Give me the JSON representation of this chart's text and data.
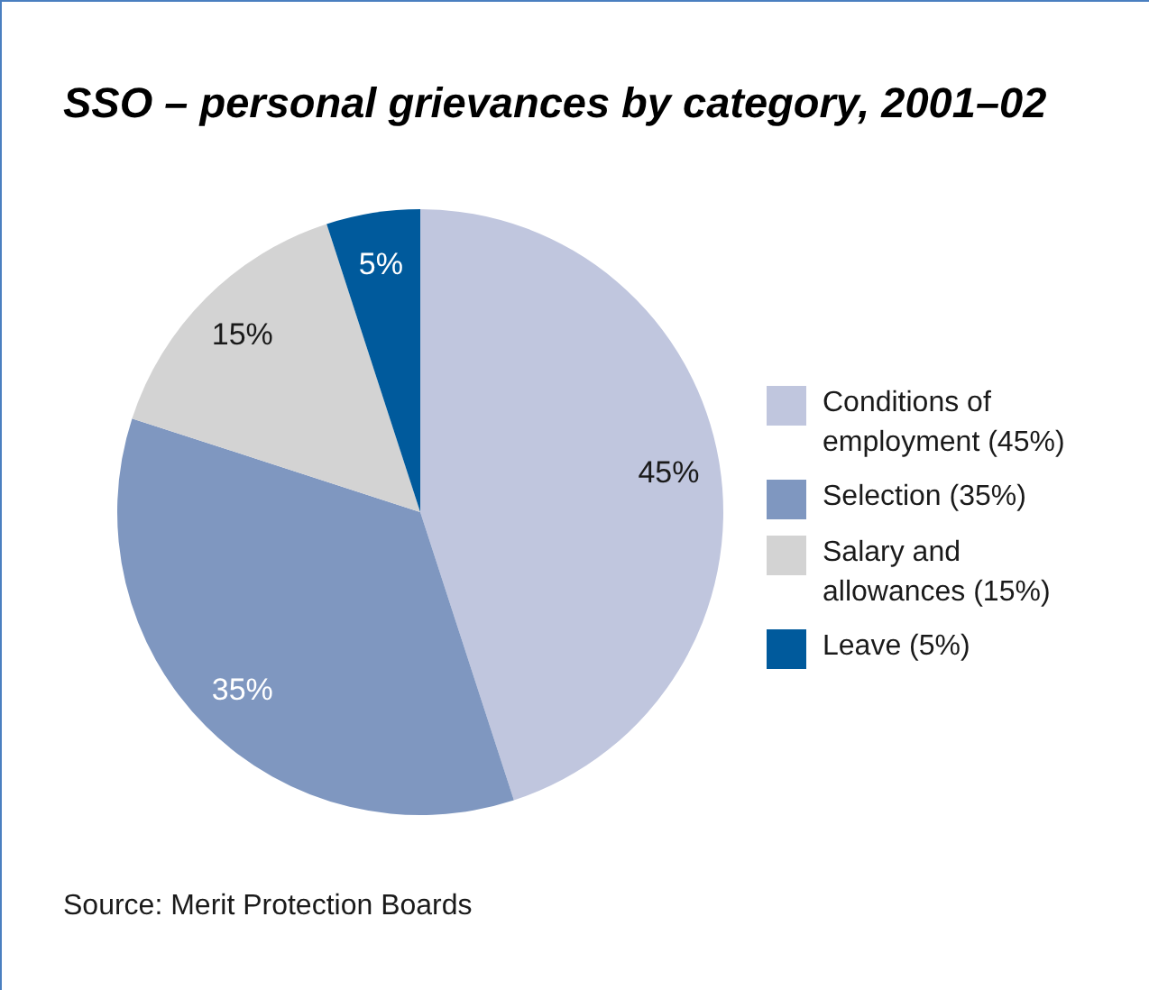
{
  "chart_data": {
    "type": "pie",
    "title": "SSO – personal grievances by category, 2001–02",
    "categories": [
      "Conditions of employment (45%)",
      "Selection (35%)",
      "Salary and allowances (15%)",
      "Leave (5%)"
    ],
    "values": [
      45,
      35,
      15,
      5
    ],
    "colors": [
      "#c0c6de",
      "#7f97c0",
      "#d3d3d3",
      "#005a9c"
    ],
    "value_labels": [
      "45%",
      "35%",
      "15%",
      "5%"
    ],
    "legend": "right",
    "annotations": [
      "Source: Merit Protection Boards"
    ]
  }
}
